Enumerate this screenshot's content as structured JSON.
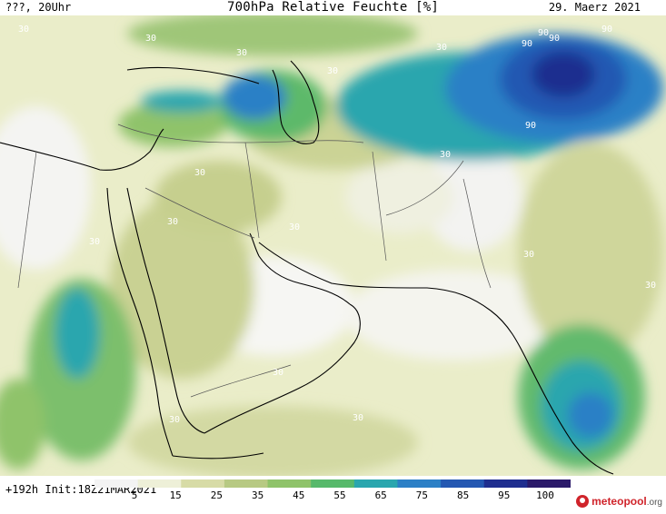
{
  "header": {
    "left": "???, 20Uhr",
    "title": "700hPa Relative Feuchte [%]",
    "right": "29. Maerz 2021"
  },
  "footer": {
    "lead": "+192h Init:18Z21MAR2021",
    "brand_main": "meteopool",
    "brand_tld": ".org"
  },
  "legend": {
    "labels": [
      "5",
      "15",
      "25",
      "35",
      "45",
      "55",
      "65",
      "75",
      "85",
      "95",
      "100"
    ],
    "colors": [
      "#f3f3f3",
      "#eef0d8",
      "#d7dba6",
      "#b7c983",
      "#8fc36a",
      "#57b96b",
      "#2aa6ae",
      "#2c80c6",
      "#2458b2",
      "#1f2e8f",
      "#2b1a6a"
    ]
  },
  "contour_labels": [
    {
      "text": "30",
      "where": "mediterranean"
    },
    {
      "text": "30",
      "where": "turkey"
    },
    {
      "text": "30",
      "where": "black-sea"
    },
    {
      "text": "30",
      "where": "caspian"
    },
    {
      "text": "30",
      "where": "central-asia"
    },
    {
      "text": "90",
      "where": "tibet"
    },
    {
      "text": "90",
      "where": "tibet"
    },
    {
      "text": "90",
      "where": "tibet"
    },
    {
      "text": "90",
      "where": "tibet"
    },
    {
      "text": "90",
      "where": "himalaya"
    },
    {
      "text": "30",
      "where": "iraq"
    },
    {
      "text": "30",
      "where": "arabia"
    },
    {
      "text": "30",
      "where": "iran"
    },
    {
      "text": "30",
      "where": "afghanistan"
    },
    {
      "text": "30",
      "where": "india"
    },
    {
      "text": "30",
      "where": "arabian-sea"
    },
    {
      "text": "30",
      "where": "africa"
    },
    {
      "text": "30",
      "where": "yemen"
    },
    {
      "text": "30",
      "where": "indian-ocean"
    },
    {
      "text": "30",
      "where": "bay-of-bengal"
    }
  ]
}
